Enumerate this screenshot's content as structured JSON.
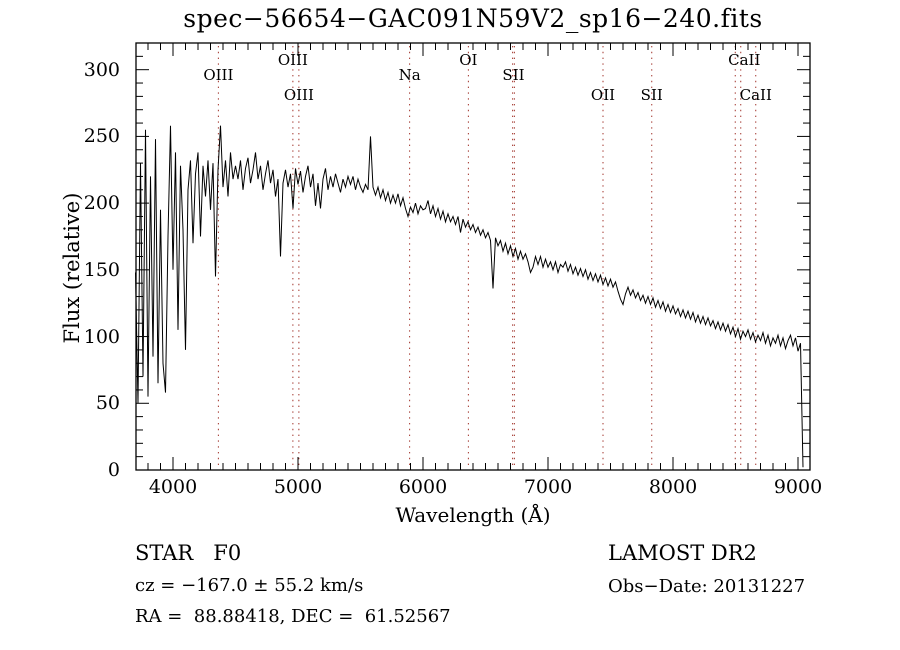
{
  "chart_data": {
    "type": "line",
    "title": "spec−56654−GAC091N59V2_sp16−240.fits",
    "xlabel": "Wavelength (Å)",
    "ylabel": "Flux (relative)",
    "grid": false,
    "legend": "none",
    "line_color": "#000000",
    "x_axis": {
      "range": [
        3704,
        9096
      ],
      "major_ticks": [
        4000,
        5000,
        6000,
        7000,
        8000,
        9000
      ],
      "tick_labels": [
        "4000",
        "5000",
        "6000",
        "7000",
        "8000",
        "9000"
      ],
      "minor_tick_step": 100
    },
    "y_axis": {
      "range": [
        0,
        320
      ],
      "major_ticks": [
        0,
        50,
        100,
        150,
        200,
        250,
        300
      ],
      "tick_labels": [
        "0",
        "50",
        "100",
        "150",
        "200",
        "250",
        "300"
      ],
      "minor_tick_step": 10
    },
    "series": [
      {
        "name": "spectrum flux",
        "points": [
          [
            3700,
            148
          ],
          [
            3720,
            50
          ],
          [
            3740,
            230
          ],
          [
            3760,
            70
          ],
          [
            3780,
            255
          ],
          [
            3800,
            55
          ],
          [
            3820,
            220
          ],
          [
            3840,
            85
          ],
          [
            3860,
            248
          ],
          [
            3880,
            65
          ],
          [
            3900,
            195
          ],
          [
            3920,
            80
          ],
          [
            3940,
            58
          ],
          [
            3960,
            175
          ],
          [
            3980,
            258
          ],
          [
            4000,
            150
          ],
          [
            4020,
            238
          ],
          [
            4040,
            105
          ],
          [
            4060,
            228
          ],
          [
            4080,
            180
          ],
          [
            4100,
            90
          ],
          [
            4120,
            210
          ],
          [
            4140,
            232
          ],
          [
            4160,
            170
          ],
          [
            4180,
            222
          ],
          [
            4200,
            238
          ],
          [
            4220,
            175
          ],
          [
            4240,
            228
          ],
          [
            4260,
            205
          ],
          [
            4280,
            232
          ],
          [
            4300,
            195
          ],
          [
            4320,
            230
          ],
          [
            4340,
            145
          ],
          [
            4360,
            225
          ],
          [
            4380,
            258
          ],
          [
            4400,
            212
          ],
          [
            4420,
            232
          ],
          [
            4440,
            205
          ],
          [
            4460,
            238
          ],
          [
            4480,
            218
          ],
          [
            4500,
            228
          ],
          [
            4520,
            218
          ],
          [
            4540,
            232
          ],
          [
            4560,
            210
          ],
          [
            4580,
            226
          ],
          [
            4600,
            234
          ],
          [
            4620,
            215
          ],
          [
            4640,
            225
          ],
          [
            4660,
            238
          ],
          [
            4680,
            218
          ],
          [
            4700,
            228
          ],
          [
            4720,
            210
          ],
          [
            4740,
            222
          ],
          [
            4760,
            232
          ],
          [
            4780,
            215
          ],
          [
            4800,
            225
          ],
          [
            4820,
            205
          ],
          [
            4840,
            218
          ],
          [
            4860,
            160
          ],
          [
            4880,
            215
          ],
          [
            4900,
            225
          ],
          [
            4920,
            212
          ],
          [
            4940,
            222
          ],
          [
            4960,
            196
          ],
          [
            4980,
            226
          ],
          [
            5000,
            214
          ],
          [
            5020,
            224
          ],
          [
            5040,
            208
          ],
          [
            5060,
            220
          ],
          [
            5080,
            228
          ],
          [
            5100,
            212
          ],
          [
            5120,
            222
          ],
          [
            5140,
            198
          ],
          [
            5160,
            215
          ],
          [
            5180,
            196
          ],
          [
            5200,
            218
          ],
          [
            5220,
            226
          ],
          [
            5240,
            210
          ],
          [
            5260,
            220
          ],
          [
            5280,
            212
          ],
          [
            5300,
            222
          ],
          [
            5320,
            215
          ],
          [
            5340,
            208
          ],
          [
            5360,
            218
          ],
          [
            5380,
            212
          ],
          [
            5400,
            220
          ],
          [
            5420,
            214
          ],
          [
            5440,
            220
          ],
          [
            5460,
            210
          ],
          [
            5480,
            218
          ],
          [
            5500,
            212
          ],
          [
            5520,
            208
          ],
          [
            5540,
            214
          ],
          [
            5560,
            210
          ],
          [
            5580,
            250
          ],
          [
            5600,
            212
          ],
          [
            5620,
            206
          ],
          [
            5640,
            212
          ],
          [
            5660,
            204
          ],
          [
            5680,
            210
          ],
          [
            5700,
            202
          ],
          [
            5720,
            208
          ],
          [
            5740,
            200
          ],
          [
            5760,
            206
          ],
          [
            5780,
            200
          ],
          [
            5800,
            207
          ],
          [
            5820,
            198
          ],
          [
            5840,
            204
          ],
          [
            5860,
            196
          ],
          [
            5880,
            190
          ],
          [
            5900,
            197
          ],
          [
            5920,
            193
          ],
          [
            5940,
            200
          ],
          [
            5960,
            192
          ],
          [
            5980,
            198
          ],
          [
            6000,
            195
          ],
          [
            6020,
            196
          ],
          [
            6040,
            202
          ],
          [
            6060,
            192
          ],
          [
            6080,
            198
          ],
          [
            6100,
            190
          ],
          [
            6120,
            196
          ],
          [
            6140,
            188
          ],
          [
            6160,
            194
          ],
          [
            6180,
            186
          ],
          [
            6200,
            192
          ],
          [
            6220,
            186
          ],
          [
            6240,
            190
          ],
          [
            6260,
            184
          ],
          [
            6280,
            190
          ],
          [
            6300,
            178
          ],
          [
            6320,
            188
          ],
          [
            6340,
            182
          ],
          [
            6360,
            186
          ],
          [
            6380,
            180
          ],
          [
            6400,
            184
          ],
          [
            6420,
            178
          ],
          [
            6440,
            182
          ],
          [
            6460,
            176
          ],
          [
            6480,
            180
          ],
          [
            6500,
            174
          ],
          [
            6520,
            178
          ],
          [
            6540,
            172
          ],
          [
            6560,
            136
          ],
          [
            6580,
            174
          ],
          [
            6600,
            168
          ],
          [
            6620,
            172
          ],
          [
            6640,
            164
          ],
          [
            6660,
            170
          ],
          [
            6680,
            162
          ],
          [
            6700,
            168
          ],
          [
            6720,
            160
          ],
          [
            6740,
            166
          ],
          [
            6760,
            158
          ],
          [
            6780,
            164
          ],
          [
            6800,
            158
          ],
          [
            6820,
            162
          ],
          [
            6840,
            156
          ],
          [
            6860,
            148
          ],
          [
            6880,
            152
          ],
          [
            6900,
            160
          ],
          [
            6920,
            154
          ],
          [
            6940,
            160
          ],
          [
            6960,
            152
          ],
          [
            6980,
            158
          ],
          [
            7000,
            152
          ],
          [
            7020,
            156
          ],
          [
            7040,
            150
          ],
          [
            7060,
            156
          ],
          [
            7080,
            148
          ],
          [
            7100,
            154
          ],
          [
            7120,
            152
          ],
          [
            7140,
            156
          ],
          [
            7160,
            149
          ],
          [
            7180,
            154
          ],
          [
            7200,
            147
          ],
          [
            7220,
            152
          ],
          [
            7240,
            146
          ],
          [
            7260,
            151
          ],
          [
            7280,
            145
          ],
          [
            7300,
            150
          ],
          [
            7320,
            143
          ],
          [
            7340,
            148
          ],
          [
            7360,
            142
          ],
          [
            7380,
            147
          ],
          [
            7400,
            141
          ],
          [
            7420,
            146
          ],
          [
            7440,
            139
          ],
          [
            7460,
            144
          ],
          [
            7480,
            138
          ],
          [
            7500,
            143
          ],
          [
            7520,
            137
          ],
          [
            7540,
            141
          ],
          [
            7560,
            134
          ],
          [
            7580,
            128
          ],
          [
            7600,
            124
          ],
          [
            7620,
            132
          ],
          [
            7640,
            137
          ],
          [
            7660,
            131
          ],
          [
            7680,
            135
          ],
          [
            7700,
            129
          ],
          [
            7720,
            133
          ],
          [
            7740,
            127
          ],
          [
            7760,
            131
          ],
          [
            7780,
            125
          ],
          [
            7800,
            130
          ],
          [
            7820,
            124
          ],
          [
            7840,
            129
          ],
          [
            7860,
            122
          ],
          [
            7880,
            127
          ],
          [
            7900,
            121
          ],
          [
            7920,
            126
          ],
          [
            7940,
            119
          ],
          [
            7960,
            124
          ],
          [
            7980,
            118
          ],
          [
            8000,
            123
          ],
          [
            8020,
            117
          ],
          [
            8040,
            121
          ],
          [
            8060,
            115
          ],
          [
            8080,
            120
          ],
          [
            8100,
            114
          ],
          [
            8120,
            119
          ],
          [
            8140,
            113
          ],
          [
            8160,
            118
          ],
          [
            8180,
            111
          ],
          [
            8200,
            116
          ],
          [
            8220,
            110
          ],
          [
            8240,
            115
          ],
          [
            8260,
            109
          ],
          [
            8280,
            114
          ],
          [
            8300,
            108
          ],
          [
            8320,
            112
          ],
          [
            8340,
            106
          ],
          [
            8360,
            111
          ],
          [
            8380,
            105
          ],
          [
            8400,
            110
          ],
          [
            8420,
            104
          ],
          [
            8440,
            109
          ],
          [
            8460,
            102
          ],
          [
            8480,
            107
          ],
          [
            8500,
            100
          ],
          [
            8520,
            106
          ],
          [
            8540,
            98
          ],
          [
            8560,
            104
          ],
          [
            8580,
            100
          ],
          [
            8600,
            105
          ],
          [
            8620,
            98
          ],
          [
            8640,
            103
          ],
          [
            8660,
            96
          ],
          [
            8680,
            101
          ],
          [
            8700,
            97
          ],
          [
            8720,
            103
          ],
          [
            8740,
            95
          ],
          [
            8760,
            101
          ],
          [
            8780,
            93
          ],
          [
            8800,
            99
          ],
          [
            8820,
            95
          ],
          [
            8840,
            101
          ],
          [
            8860,
            93
          ],
          [
            8880,
            99
          ],
          [
            8900,
            91
          ],
          [
            8920,
            97
          ],
          [
            8940,
            101
          ],
          [
            8960,
            93
          ],
          [
            8980,
            99
          ],
          [
            9000,
            89
          ],
          [
            9020,
            95
          ],
          [
            9040,
            2
          ]
        ]
      }
    ]
  },
  "spectral_lines": {
    "marker_color": "#a03028",
    "lines_wavelengths": [
      4363,
      4959,
      5007,
      5893,
      6363,
      6717,
      6731,
      7440,
      7830,
      8498,
      8542,
      8662
    ],
    "labels": [
      {
        "text": "OIII",
        "wavelength": 4363,
        "row": 2
      },
      {
        "text": "OIII",
        "wavelength": 4959,
        "row": 1
      },
      {
        "text": "OIII",
        "wavelength": 5007,
        "row": 3
      },
      {
        "text": "Na",
        "wavelength": 5893,
        "row": 2
      },
      {
        "text": "OI",
        "wavelength": 6363,
        "row": 1
      },
      {
        "text": "SII",
        "wavelength": 6724,
        "row": 2
      },
      {
        "text": "OII",
        "wavelength": 7440,
        "row": 3
      },
      {
        "text": "SII",
        "wavelength": 7830,
        "row": 3
      },
      {
        "text": "CaII",
        "wavelength": 8570,
        "row": 1
      },
      {
        "text": "CaII",
        "wavelength": 8662,
        "row": 3
      }
    ]
  },
  "footer": {
    "class_label": "STAR   F0",
    "survey": "LAMOST DR2",
    "cz": "cz = −167.0 ± 55.2 km/s",
    "obs_date": "Obs−Date: 20131227",
    "radec": "RA =  88.88418, DEC =  61.52567"
  }
}
